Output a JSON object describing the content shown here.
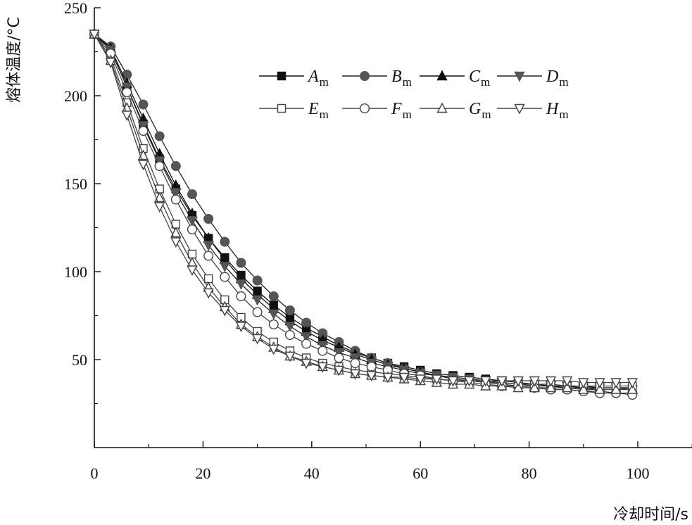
{
  "chart_data": {
    "type": "line",
    "xlabel": "冷却时间/s",
    "ylabel": "熔体温度/°C",
    "xlim": [
      0,
      110
    ],
    "ylim": [
      0,
      250
    ],
    "xticks": [
      0,
      20,
      40,
      60,
      80,
      100
    ],
    "yticks": [
      50,
      100,
      150,
      200,
      250
    ],
    "legend_position": "top-right",
    "x": [
      0,
      3,
      6,
      9,
      12,
      15,
      18,
      21,
      24,
      27,
      30,
      33,
      36,
      39,
      42,
      45,
      48,
      51,
      54,
      57,
      60,
      63,
      66,
      69,
      72,
      75,
      78,
      81,
      84,
      87,
      90,
      93,
      96,
      99
    ],
    "series": [
      {
        "name": "A",
        "subscript": "m",
        "marker": "square",
        "fill": "#111111",
        "line": "#111111",
        "values": [
          235,
          226,
          205,
          184,
          164,
          147,
          132,
          119,
          108,
          98,
          89,
          81,
          74,
          68,
          63,
          58,
          54,
          51,
          48,
          46,
          44,
          42,
          41,
          40,
          39,
          38,
          37,
          36,
          36,
          35,
          35,
          34,
          34,
          34
        ]
      },
      {
        "name": "B",
        "subscript": "m",
        "marker": "circle",
        "fill": "#555555",
        "line": "#222222",
        "values": [
          235,
          228,
          212,
          195,
          177,
          160,
          144,
          130,
          117,
          105,
          95,
          86,
          78,
          71,
          65,
          60,
          55,
          51,
          48,
          45,
          43,
          41,
          39,
          38,
          37,
          36,
          35,
          34,
          33,
          33,
          32,
          32,
          31,
          31
        ]
      },
      {
        "name": "C",
        "subscript": "m",
        "marker": "triangle-up",
        "fill": "#111111",
        "line": "#111111",
        "values": [
          235,
          227,
          207,
          187,
          167,
          149,
          133,
          119,
          107,
          96,
          87,
          79,
          72,
          66,
          61,
          57,
          53,
          50,
          47,
          45,
          43,
          41,
          40,
          39,
          38,
          37,
          36,
          35,
          35,
          34,
          34,
          33,
          33,
          33
        ]
      },
      {
        "name": "D",
        "subscript": "m",
        "marker": "triangle-down",
        "fill": "#555555",
        "line": "#222222",
        "values": [
          235,
          226,
          205,
          183,
          163,
          145,
          129,
          115,
          103,
          93,
          84,
          76,
          69,
          63,
          58,
          54,
          51,
          48,
          46,
          44,
          42,
          41,
          40,
          39,
          38,
          37,
          36,
          36,
          35,
          35,
          34,
          34,
          34,
          33
        ]
      },
      {
        "name": "E",
        "subscript": "m",
        "marker": "square-open",
        "fill": "#ffffff",
        "line": "#444444",
        "values": [
          235,
          222,
          196,
          170,
          147,
          127,
          110,
          96,
          84,
          74,
          66,
          60,
          55,
          51,
          48,
          46,
          44,
          43,
          42,
          41,
          40,
          39,
          38,
          38,
          37,
          37,
          36,
          36,
          36,
          35,
          35,
          35,
          35,
          35
        ]
      },
      {
        "name": "F",
        "subscript": "m",
        "marker": "circle-open",
        "fill": "#ffffff",
        "line": "#444444",
        "values": [
          235,
          224,
          202,
          180,
          160,
          141,
          124,
          109,
          97,
          86,
          77,
          70,
          64,
          59,
          55,
          51,
          48,
          46,
          44,
          42,
          41,
          39,
          38,
          37,
          36,
          35,
          35,
          34,
          33,
          33,
          32,
          31,
          31,
          30
        ]
      },
      {
        "name": "G",
        "subscript": "m",
        "marker": "triangle-up-open",
        "fill": "#ffffff",
        "line": "#444444",
        "values": [
          235,
          220,
          193,
          166,
          142,
          122,
          105,
          91,
          80,
          70,
          63,
          57,
          52,
          49,
          46,
          44,
          42,
          41,
          40,
          39,
          38,
          37,
          36,
          36,
          35,
          35,
          34,
          34,
          34,
          34,
          33,
          33,
          33,
          33
        ]
      },
      {
        "name": "H",
        "subscript": "m",
        "marker": "triangle-down-open",
        "fill": "#ffffff",
        "line": "#444444",
        "values": [
          235,
          219,
          189,
          161,
          137,
          117,
          101,
          88,
          78,
          69,
          62,
          56,
          52,
          48,
          46,
          44,
          42,
          41,
          40,
          40,
          39,
          39,
          38,
          38,
          38,
          38,
          38,
          38,
          38,
          38,
          37,
          37,
          37,
          37
        ]
      }
    ]
  }
}
